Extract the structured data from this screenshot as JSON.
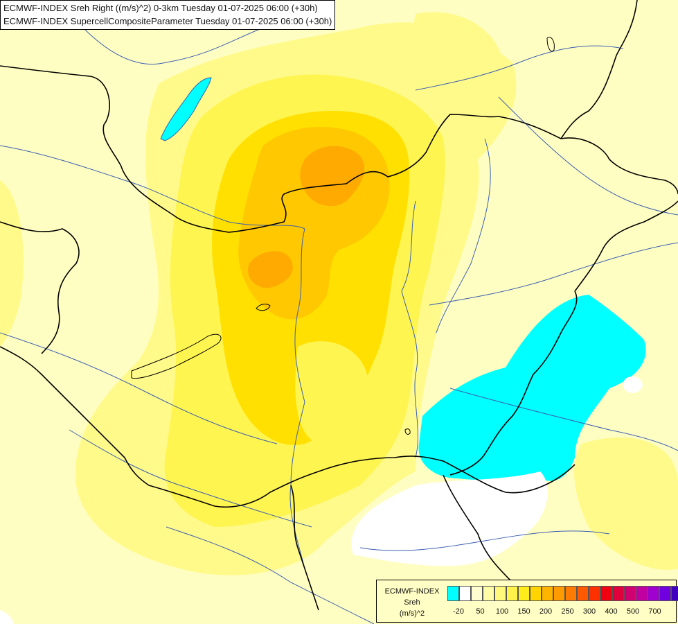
{
  "header": {
    "line1": "ECMWF-INDEX Sreh Right ((m/s)^2) 0-3km Tuesday 01-07-2025 06:00 (+30h)",
    "line2": "ECMWF-INDEX SupercellCompositeParameter Tuesday 01-07-2025 06:00 (+30h)"
  },
  "legend": {
    "source": "ECMWF-INDEX",
    "variable": "Sreh",
    "unit": "(m/s)^2",
    "swatches": [
      "#00ffff",
      "#ffffff",
      "#fffed0",
      "#fffca8",
      "#fff87a",
      "#fff24a",
      "#ffec1a",
      "#ffd400",
      "#ffb400",
      "#ff9a00",
      "#ff7c00",
      "#ff5a00",
      "#ff3000",
      "#f00010",
      "#e0003c",
      "#d00070",
      "#c000a0",
      "#a000d0",
      "#7000e0",
      "#4000c0",
      "#200090"
    ],
    "ticks": [
      "-20",
      "50",
      "100",
      "150",
      "200",
      "250",
      "300",
      "400",
      "500",
      "700"
    ]
  },
  "map": {
    "region_colors": {
      "background": "#fffec2",
      "light_yellow": "#fffa8a",
      "yellow": "#fff550",
      "gold": "#ffe000",
      "dark_gold": "#ffc800",
      "orange": "#ffaa00",
      "negative_cyan": "#00ffff",
      "zero_white": "#ffffff",
      "lake": "#00ffff"
    },
    "lines": {
      "borders": "#000000",
      "rivers": "#3a5fb0"
    }
  }
}
